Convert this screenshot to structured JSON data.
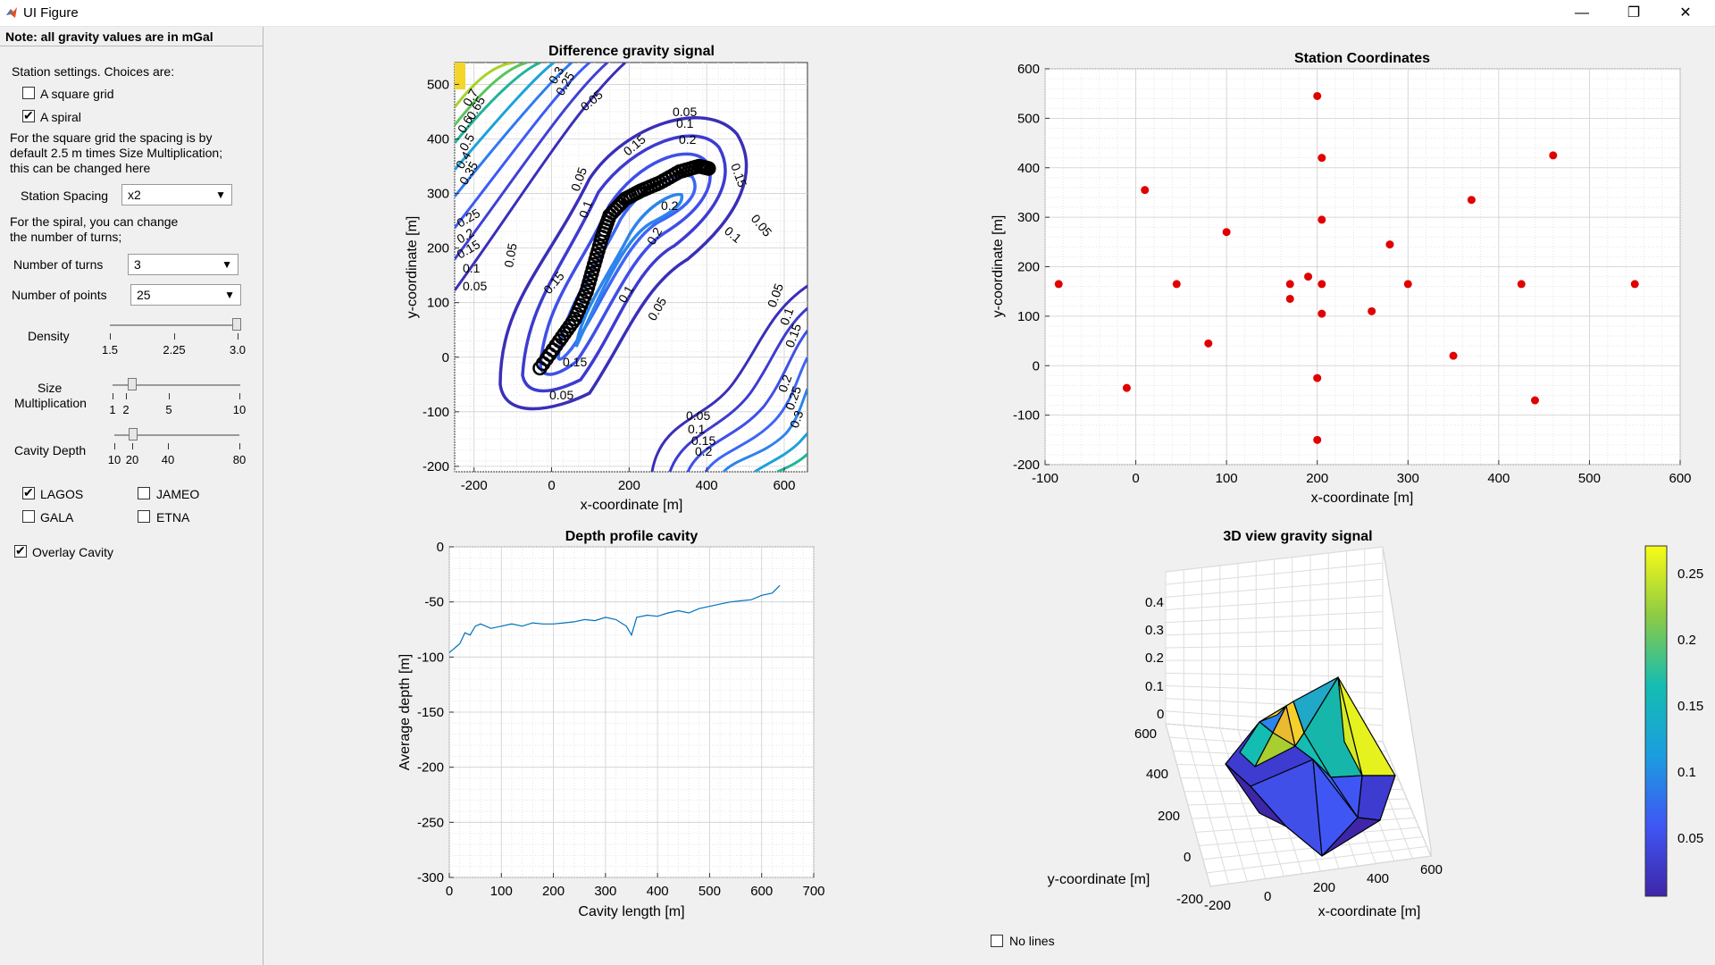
{
  "window": {
    "title": "UI Figure",
    "minimize": "—",
    "restore": "❐",
    "close": "✕"
  },
  "panel": {
    "note": "Note: all gravity values are in mGal",
    "station_settings": "Station settings. Choices are:",
    "square_grid": {
      "label": "A square grid",
      "checked": false
    },
    "spiral": {
      "label": "A spiral",
      "checked": true
    },
    "grid_info_1": "For the square grid the spacing is by",
    "grid_info_2": "default 2.5 m times Size Multiplication;",
    "grid_info_3": "this can be changed here",
    "station_spacing_label": "Station Spacing",
    "station_spacing_value": "x2",
    "spiral_info_1": "For the spiral, you can change",
    "spiral_info_2": "the number of turns;",
    "turns_label": "Number of turns",
    "turns_value": "3",
    "points_label": "Number of points",
    "points_value": "25",
    "density_label": "Density",
    "density_ticks": [
      "1.5",
      "2.25",
      "3.0"
    ],
    "density_value": 3.0,
    "size_label_1": "Size",
    "size_label_2": "Multiplication",
    "size_ticks": [
      "1",
      "2",
      "5",
      "10"
    ],
    "size_value": 2,
    "cavity_depth_label": "Cavity Depth",
    "cavity_ticks": [
      "10",
      "20",
      "40",
      "80"
    ],
    "cavity_value": 20,
    "lagos": {
      "label": "LAGOS",
      "checked": true
    },
    "jameo": {
      "label": "JAMEO",
      "checked": false
    },
    "gala": {
      "label": "GALA",
      "checked": false
    },
    "etna": {
      "label": "ETNA",
      "checked": false
    },
    "overlay": {
      "label": "Overlay Cavity",
      "checked": true
    }
  },
  "no_lines": {
    "label": "No lines",
    "checked": false
  },
  "chart_data": [
    {
      "type": "contour",
      "title": "Difference gravity signal",
      "xlabel": "x-coordinate [m]",
      "ylabel": "y-coordinate [m]",
      "xlim": [
        -250,
        660
      ],
      "ylim": [
        -210,
        540
      ],
      "xticks": [
        -200,
        0,
        200,
        400,
        600
      ],
      "yticks": [
        -200,
        -100,
        0,
        100,
        200,
        300,
        400,
        500
      ],
      "contour_levels": [
        "0.05",
        "0.1",
        "0.15",
        "0.2",
        "0.25",
        "0.3",
        "0.35",
        "0.4",
        "0.45",
        "0.5",
        "0.55",
        "0.6",
        "0.65",
        "0.7"
      ],
      "grid": true
    },
    {
      "type": "scatter",
      "title": "Station Coordinates",
      "xlabel": "x-coordinate [m]",
      "ylabel": "y-coordinate [m]",
      "xlim": [
        -100,
        600
      ],
      "ylim": [
        -200,
        600
      ],
      "xticks": [
        -100,
        0,
        100,
        200,
        300,
        400,
        500,
        600
      ],
      "yticks": [
        -200,
        -100,
        0,
        100,
        200,
        300,
        400,
        500,
        600
      ],
      "grid": true,
      "color": "#e00000",
      "points": [
        [
          200,
          545
        ],
        [
          205,
          420
        ],
        [
          10,
          355
        ],
        [
          460,
          425
        ],
        [
          370,
          335
        ],
        [
          205,
          295
        ],
        [
          100,
          270
        ],
        [
          280,
          245
        ],
        [
          190,
          180
        ],
        [
          -85,
          165
        ],
        [
          45,
          165
        ],
        [
          170,
          165
        ],
        [
          205,
          165
        ],
        [
          300,
          165
        ],
        [
          425,
          165
        ],
        [
          550,
          165
        ],
        [
          170,
          135
        ],
        [
          260,
          110
        ],
        [
          205,
          105
        ],
        [
          80,
          45
        ],
        [
          350,
          20
        ],
        [
          200,
          -25
        ],
        [
          -10,
          -45
        ],
        [
          440,
          -70
        ],
        [
          200,
          -150
        ]
      ]
    },
    {
      "type": "line",
      "title": "Depth profile cavity",
      "xlabel": "Cavity length [m]",
      "ylabel": "Average depth [m]",
      "xlim": [
        0,
        700
      ],
      "ylim": [
        -300,
        0
      ],
      "xticks": [
        0,
        100,
        200,
        300,
        400,
        500,
        600,
        700
      ],
      "yticks": [
        0,
        -50,
        -100,
        -150,
        -200,
        -250,
        -300
      ],
      "grid": true,
      "color": "#0072bd",
      "x": [
        0,
        10,
        20,
        30,
        40,
        50,
        60,
        80,
        100,
        120,
        140,
        160,
        180,
        200,
        220,
        240,
        260,
        280,
        300,
        320,
        340,
        350,
        360,
        380,
        400,
        420,
        440,
        460,
        480,
        500,
        520,
        540,
        560,
        580,
        600,
        620,
        635
      ],
      "y": [
        -96,
        -92,
        -88,
        -78,
        -80,
        -72,
        -70,
        -74,
        -72,
        -70,
        -72,
        -69,
        -70,
        -70,
        -69,
        -68,
        -66,
        -67,
        -64,
        -66,
        -72,
        -80,
        -64,
        -62,
        -63,
        -60,
        -58,
        -60,
        -56,
        -54,
        -52,
        -50,
        -49,
        -48,
        -44,
        -42,
        -35
      ]
    },
    {
      "type": "surface",
      "title": "3D view gravity signal",
      "xlabel": "x-coordinate [m]",
      "ylabel": "y-coordinate [m]",
      "zticks": [
        "0",
        "0.1",
        "0.2",
        "0.3",
        "0.4"
      ],
      "xticks": [
        "-200",
        "0",
        "200",
        "400",
        "600"
      ],
      "yticks": [
        "-200",
        "0",
        "200",
        "400",
        "600"
      ],
      "colorbar_ticks": [
        "0.05",
        "0.1",
        "0.15",
        "0.2",
        "0.25"
      ],
      "colormap": "parula"
    }
  ]
}
